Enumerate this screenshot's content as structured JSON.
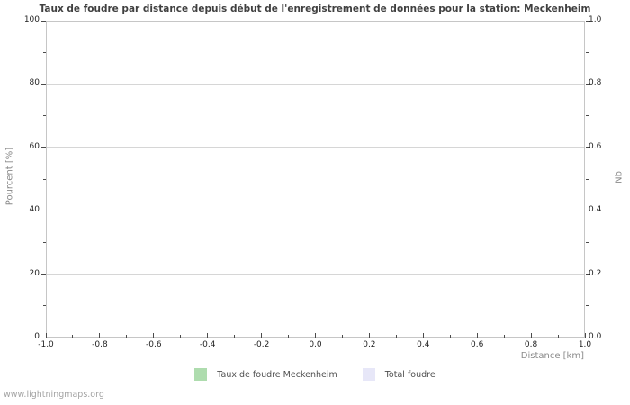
{
  "chart": {
    "title": "Taux de foudre par distance depuis début de l'enregistrement de données pour la station: Meckenheim",
    "watermark": "www.lightningmaps.org",
    "left_axis": {
      "label": "Pourcent  [%]"
    },
    "right_axis": {
      "label": "Nb"
    },
    "x_axis": {
      "label": "Distance  [km]"
    },
    "legend": {
      "items": [
        {
          "label": "Taux de foudre Meckenheim",
          "color": "#aedcae"
        },
        {
          "label": "Total foudre",
          "color": "#e7e7f8"
        }
      ]
    }
  },
  "colors": {
    "background": "#ffffff",
    "plot_border": "#c6c6c6",
    "gridline": "#d6d6d6",
    "tick": "#4a4a4a",
    "title_text": "#404040",
    "tick_text": "#1f1f1f",
    "axis_label_text": "#8a8a8a",
    "legend_text": "#4f4f4f",
    "watermark_text": "#a3a3a3",
    "series_green": "#aedcae",
    "series_lavender": "#e7e7f8"
  },
  "chart_data": {
    "type": "bar",
    "title": "Taux de foudre par distance depuis début de l'enregistrement de données pour la station: Meckenheim",
    "xlabel": "Distance  [km]",
    "ylabel_left": "Pourcent  [%]",
    "ylabel_right": "Nb",
    "xlim": [
      -1.0,
      1.0
    ],
    "ylim_left": [
      0,
      100
    ],
    "ylim_right": [
      0.0,
      1.0
    ],
    "x_tick_labels": [
      "-1.0",
      "-0.8",
      "-0.6",
      "-0.4",
      "-0.2",
      "0.0",
      "0.2",
      "0.4",
      "0.6",
      "0.8",
      "1.0"
    ],
    "left_tick_labels": [
      "0",
      "20",
      "40",
      "60",
      "80",
      "100"
    ],
    "right_tick_labels": [
      "0.0",
      "0.2",
      "0.4",
      "0.6",
      "0.8",
      "1.0"
    ],
    "grid": "horizontal-only",
    "legend_position": "bottom-center",
    "empty": true,
    "series": [
      {
        "name": "Taux de foudre Meckenheim",
        "color": "#aedcae",
        "x": [],
        "values": []
      },
      {
        "name": "Total foudre",
        "color": "#e7e7f8",
        "x": [],
        "values": []
      }
    ]
  }
}
